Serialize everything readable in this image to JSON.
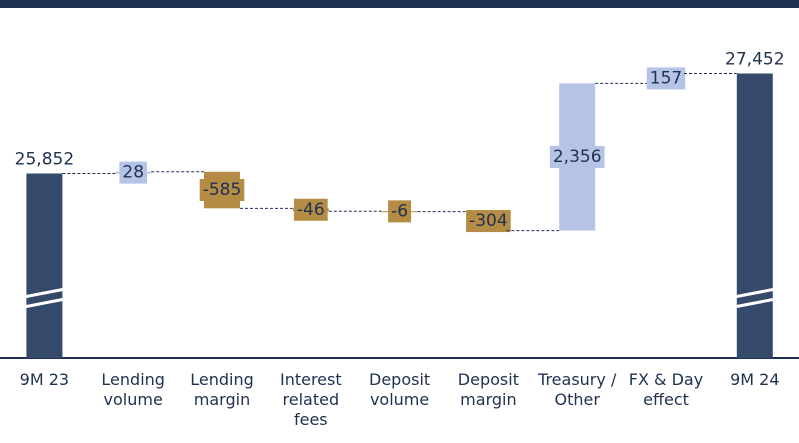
{
  "chart_data": {
    "type": "waterfall",
    "categories": [
      "9M 23",
      "Lending volume",
      "Lending margin",
      "Interest related fees",
      "Deposit volume",
      "Deposit margin",
      "Treasury / Other",
      "FX & Day effect",
      "9M 24"
    ],
    "measure": [
      "absolute",
      "relative",
      "relative",
      "relative",
      "relative",
      "relative",
      "relative",
      "relative",
      "total"
    ],
    "values": [
      25852,
      28,
      -585,
      -46,
      -6,
      -304,
      2356,
      157,
      27452
    ],
    "value_labels": [
      "25,852",
      "28",
      "-585",
      "-46",
      "-6",
      "-304",
      "2,356",
      "157",
      "27,452"
    ],
    "colors": {
      "total": "#354a6b",
      "increase": "#b4c3e6",
      "decrease": "#b48c45"
    },
    "ylim": [
      22900,
      28000
    ]
  }
}
